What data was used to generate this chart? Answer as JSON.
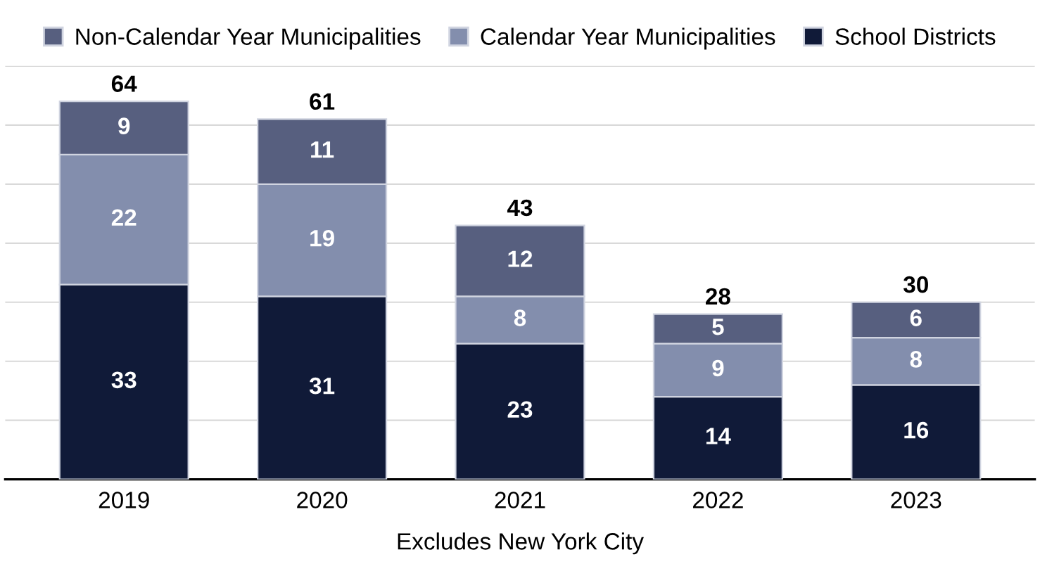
{
  "chart_data": {
    "type": "bar",
    "stacked": true,
    "xlabel": "Excludes New York City",
    "categories": [
      "2019",
      "2020",
      "2021",
      "2022",
      "2023"
    ],
    "series": [
      {
        "name": "School Districts",
        "color": "#101a38",
        "values": [
          33,
          31,
          23,
          14,
          16
        ]
      },
      {
        "name": "Calendar Year Municipalities",
        "color": "#838ead",
        "values": [
          22,
          19,
          8,
          9,
          8
        ]
      },
      {
        "name": "Non-Calendar Year Municipalities",
        "color": "#575f7f",
        "values": [
          9,
          11,
          12,
          5,
          6
        ]
      }
    ],
    "totals": [
      "64",
      "61",
      "43",
      "28",
      "30"
    ],
    "data_labels": true,
    "ylim": [
      0,
      70
    ],
    "yticks": [
      {
        "value": 0,
        "label": null
      },
      {
        "value": 10,
        "label": null
      },
      {
        "value": 20,
        "label": null
      },
      {
        "value": 30,
        "label": null
      },
      {
        "value": 40,
        "label": null
      },
      {
        "value": 50,
        "label": null
      },
      {
        "value": 60,
        "label": null
      },
      {
        "value": 70,
        "label": null
      }
    ],
    "grid": "y",
    "legend": "top",
    "tick_labels": "x"
  }
}
